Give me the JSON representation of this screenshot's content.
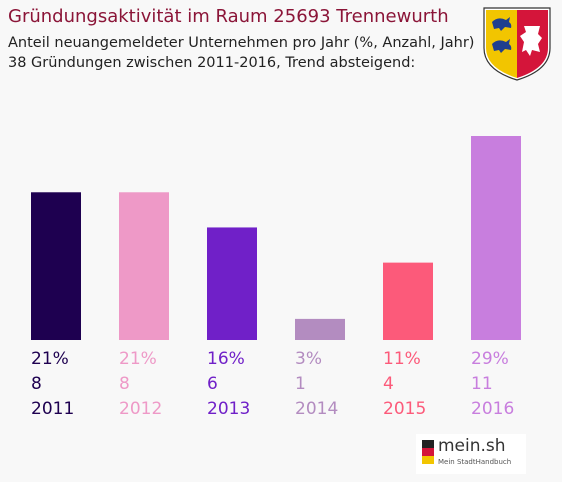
{
  "header": {
    "title": "Gründungsaktivität im Raum 25693 Trennewurth",
    "subtitle_line1": "Anteil neuangemeldeter Unternehmen pro Jahr (%, Anzahl, Jahr)",
    "subtitle_line2": "38 Gründungen zwischen 2011-2016, Trend absteigend:"
  },
  "colors": {
    "title": "#8b1538",
    "bars": [
      "#1e0050",
      "#ee99c7",
      "#7020c8",
      "#b38cc0",
      "#fc5a7a",
      "#c87ede"
    ]
  },
  "crest_icon": "schleswig-holstein-coat-of-arms-icon",
  "logo": {
    "name": "mein.sh",
    "tagline": "Mein StadtHandbuch",
    "icon": "germany-map-icon"
  },
  "chart_data": {
    "type": "bar",
    "title": "Gründungsaktivität im Raum 25693 Trennewurth",
    "categories": [
      "2011",
      "2012",
      "2013",
      "2014",
      "2015",
      "2016"
    ],
    "series": [
      {
        "values": [
          21,
          21,
          16,
          3,
          11,
          29
        ]
      }
    ],
    "percent_labels": [
      "21%",
      "21%",
      "16%",
      "3%",
      "11%",
      "29%"
    ],
    "counts": [
      "8",
      "8",
      "6",
      "1",
      "4",
      "11"
    ],
    "ylim": [
      0,
      29
    ],
    "grid": false,
    "legend": "none"
  }
}
